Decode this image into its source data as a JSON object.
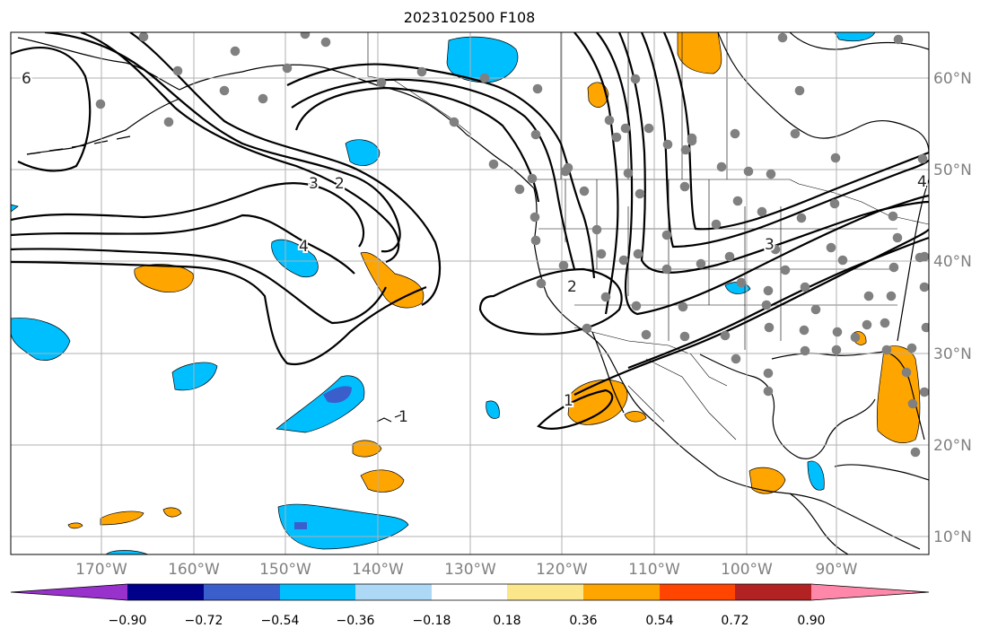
{
  "title": "2023102500 F108",
  "map": {
    "lon_ticks": [
      "170°W",
      "160°W",
      "150°W",
      "140°W",
      "130°W",
      "120°W",
      "110°W",
      "100°W",
      "90°W"
    ],
    "lat_ticks": [
      "60°N",
      "50°N",
      "40°N",
      "30°N",
      "20°N",
      "10°N"
    ],
    "contour_labels": [
      "6",
      "3",
      "2",
      "4",
      "3",
      "2",
      "4",
      "1",
      "1"
    ],
    "grid": true,
    "stations": "gray dots over North America",
    "colors": {
      "coast": "#000000",
      "contour": "#000000",
      "station": "#808080",
      "grid": "#b0b0b0"
    }
  },
  "colorbar": {
    "levels": [
      "−0.90",
      "−0.72",
      "−0.54",
      "−0.36",
      "−0.18",
      "0.18",
      "0.36",
      "0.54",
      "0.72",
      "0.90"
    ],
    "colors": [
      "#9932CC",
      "#00008B",
      "#3A5FCD",
      "#00BFFF",
      "#ADD8F6",
      "#FFFFFF",
      "#FBE68C",
      "#FFA500",
      "#FF4500",
      "#B22222",
      "#FF88AA"
    ]
  }
}
